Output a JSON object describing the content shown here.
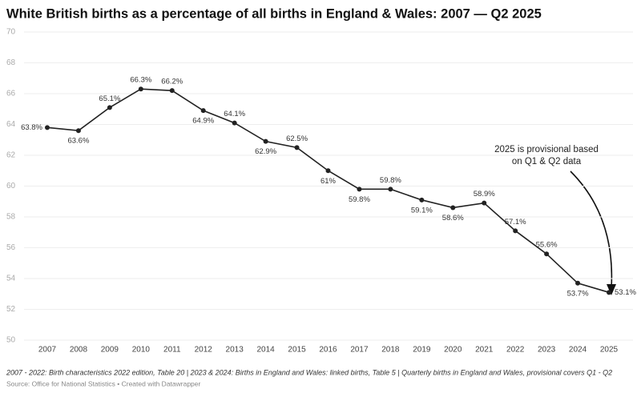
{
  "chart_data": {
    "type": "line",
    "title": "White British births as a percentage of all births in England & Wales: 2007 — Q2 2025",
    "categories": [
      "2007",
      "2008",
      "2009",
      "2010",
      "2011",
      "2012",
      "2013",
      "2014",
      "2015",
      "2016",
      "2017",
      "2018",
      "2019",
      "2020",
      "2021",
      "2022",
      "2023",
      "2024",
      "2025"
    ],
    "values": [
      63.8,
      63.6,
      65.1,
      66.3,
      66.2,
      64.9,
      64.1,
      62.9,
      62.5,
      61,
      59.8,
      59.8,
      59.1,
      58.6,
      58.9,
      57.1,
      55.6,
      53.7,
      53.1
    ],
    "value_labels": [
      "63.8%",
      "63.6%",
      "65.1%",
      "66.3%",
      "66.2%",
      "64.9%",
      "64.1%",
      "62.9%",
      "62.5%",
      "61%",
      "59.8%",
      "59.8%",
      "59.1%",
      "58.6%",
      "58.9%",
      "57.1%",
      "55.6%",
      "53.7%",
      "53.1%"
    ],
    "color": "#222222",
    "ylim": [
      50,
      70
    ],
    "yticks": [
      50,
      52,
      54,
      56,
      58,
      60,
      62,
      64,
      66,
      68,
      70
    ],
    "grid": true,
    "annotation": [
      "2025 is provisional based",
      "on Q1 & Q2 data"
    ],
    "note": "2007 - 2022: Birth characteristics 2022 edition, Table 20 | 2023 & 2024: Births in England and Wales: linked births, Table 5 | Quarterly births in England and Wales, provisional covers Q1 - Q2",
    "source": "Source: Office for National Statistics • Created with Datawrapper"
  }
}
